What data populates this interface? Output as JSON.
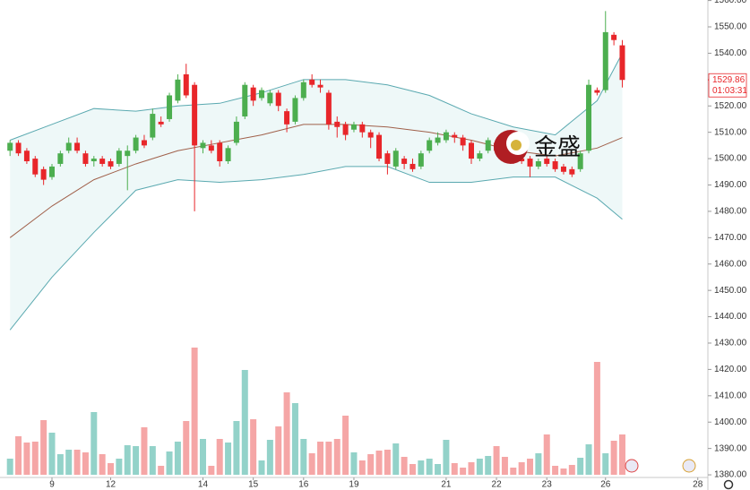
{
  "chart_data": {
    "type": "candlestick",
    "categories": [
      null,
      null,
      null,
      null,
      null,
      "9",
      null,
      null,
      null,
      null,
      null,
      null,
      "12",
      null,
      null,
      null,
      null,
      null,
      null,
      null,
      null,
      null,
      null,
      "14",
      null,
      null,
      null,
      null,
      null,
      "15",
      null,
      null,
      null,
      null,
      null,
      "16",
      null,
      null,
      null,
      null,
      null,
      "19",
      null,
      null,
      null,
      null,
      null,
      null,
      null,
      null,
      null,
      null,
      "21",
      null,
      null,
      null,
      null,
      null,
      "22",
      null,
      null,
      null,
      null,
      null,
      "23",
      null,
      null,
      null,
      null,
      null,
      null,
      "26",
      null,
      null,
      null,
      null,
      null,
      null,
      null,
      null,
      null,
      null,
      "28"
    ],
    "open": [
      1503,
      1506,
      1503,
      1500,
      1496,
      1493,
      1498,
      1503,
      1506,
      1502,
      1499,
      1500,
      1499,
      1498,
      1501,
      1503,
      1507,
      1508,
      1514,
      1515,
      1522,
      1532,
      1528,
      1504,
      1505,
      1506,
      1499,
      1506,
      1516,
      1527,
      1523,
      1521,
      1525,
      1518,
      1514,
      1523,
      1530,
      1528,
      1525,
      1514,
      1513,
      1511,
      1513,
      1510,
      1509,
      1502,
      1497,
      1500,
      1498,
      1497,
      1503,
      1506,
      1507,
      1509,
      1508,
      1506,
      1500,
      1503,
      1506,
      1505,
      1502,
      1500,
      1500,
      1497,
      1500,
      1499,
      1497,
      1496,
      1496,
      1503,
      1526,
      1526,
      1547,
      1543,
      null,
      null,
      null,
      null,
      null,
      null,
      null,
      null,
      null
    ],
    "high": [
      1507,
      1507,
      1504,
      1501,
      1497,
      1498,
      1503,
      1508,
      1508,
      1503,
      1501,
      1501,
      1500,
      1504,
      1505,
      1509,
      1509,
      1519,
      1516,
      1525,
      1532,
      1536,
      1529,
      1507,
      1507,
      1507,
      1505,
      1516,
      1529,
      1528,
      1527,
      1526,
      1526,
      1519,
      1524,
      1530,
      1532,
      1530,
      1526,
      1516,
      1514,
      1514,
      1514,
      1511,
      1510,
      1503,
      1504,
      1501,
      1500,
      1503,
      1508,
      1510,
      1511,
      1510,
      1509,
      1507,
      1503,
      1508,
      1507,
      1506,
      1503,
      1501,
      1501,
      1500,
      1501,
      1500,
      1498,
      1497,
      1503,
      1530,
      1527,
      1556,
      1548,
      1545,
      null,
      null,
      null,
      null,
      null,
      null,
      null,
      null,
      null
    ],
    "low": [
      1501,
      1501,
      1498,
      1493,
      1490,
      1492,
      1497,
      1502,
      1502,
      1497,
      1497,
      1497,
      1496,
      1497,
      1488,
      1502,
      1504,
      1507,
      1512,
      1514,
      1521,
      1523,
      1480,
      1502,
      1502,
      1497,
      1498,
      1505,
      1515,
      1520,
      1522,
      1520,
      1518,
      1510,
      1513,
      1522,
      1527,
      1525,
      1511,
      1508,
      1507,
      1510,
      1508,
      1504,
      1499,
      1494,
      1496,
      1496,
      1495,
      1496,
      1502,
      1505,
      1506,
      1506,
      1503,
      1498,
      1499,
      1502,
      1502,
      1500,
      1498,
      1498,
      1493,
      1496,
      1497,
      1495,
      1494,
      1493,
      1495,
      1502,
      1524,
      1525,
      1543,
      1527,
      null,
      null,
      null,
      null,
      null,
      null,
      null,
      null,
      null
    ],
    "close": [
      1506,
      1502,
      1499,
      1494,
      1492,
      1497,
      1502,
      1506,
      1503,
      1498,
      1500,
      1498,
      1497,
      1503,
      1503,
      1508,
      1505,
      1517,
      1513,
      1524,
      1530,
      1524,
      1505,
      1506,
      1503,
      1499,
      1504,
      1514,
      1528,
      1522,
      1526,
      1525,
      1520,
      1513,
      1523,
      1529,
      1528,
      1527,
      1513,
      1512,
      1509,
      1513,
      1510,
      1508,
      1500,
      1498,
      1503,
      1498,
      1496,
      1502,
      1507,
      1508,
      1510,
      1508,
      1505,
      1500,
      1502,
      1507,
      1503,
      1501,
      1499,
      1499,
      1497,
      1499,
      1498,
      1496,
      1495,
      1494,
      1502,
      1528,
      1525,
      1548,
      1545,
      1529.86,
      null,
      null,
      null,
      null,
      null,
      null,
      null,
      null,
      null
    ],
    "volume": [
      18,
      43,
      36,
      37,
      61,
      47,
      23,
      28,
      28,
      25,
      70,
      23,
      13,
      18,
      33,
      32,
      53,
      32,
      10,
      26,
      37,
      60,
      142,
      40,
      10,
      40,
      36,
      60,
      117,
      62,
      16,
      39,
      54,
      92,
      80,
      40,
      24,
      37,
      37,
      40,
      66,
      25,
      16,
      23,
      27,
      28,
      35,
      20,
      12,
      16,
      18,
      12,
      39,
      13,
      8,
      14,
      18,
      21,
      32,
      20,
      8,
      14,
      18,
      24,
      45,
      10,
      7,
      11,
      19,
      34,
      126,
      24,
      38,
      45,
      null,
      null,
      null,
      null,
      null,
      null,
      null,
      null,
      null
    ],
    "vlim": [
      0,
      150
    ],
    "up_color": "#4cae4f",
    "down_color": "#e8262a",
    "volume_up_color": "#93d2c9",
    "volume_down_color": "#f5a6a6",
    "bands": {
      "x": [
        0,
        5,
        10,
        15,
        20,
        25,
        30,
        35,
        40,
        45,
        50,
        55,
        60,
        65,
        70,
        73
      ],
      "upper": [
        1507,
        1513,
        1519,
        1518,
        1520,
        1521,
        1525,
        1530,
        1530,
        1528,
        1524,
        1517,
        1512,
        1509,
        1522,
        1540
      ],
      "middle": [
        1470,
        1482,
        1492,
        1498,
        1503,
        1506,
        1509,
        1513,
        1513,
        1512,
        1510,
        1507,
        1503,
        1501,
        1504,
        1508
      ],
      "lower": [
        1435,
        1455,
        1472,
        1488,
        1492,
        1491,
        1492,
        1494,
        1497,
        1497,
        1491,
        1491,
        1493,
        1493,
        1485,
        1477
      ],
      "band_color": "#5aa9b0",
      "middle_color": "#a0604a",
      "fill": "#eef8f8"
    },
    "ylim": [
      1379,
      1560.2
    ],
    "yticks": [
      {
        "value": 1380,
        "label": "1380.00"
      },
      {
        "value": 1390,
        "label": "1390.00"
      },
      {
        "value": 1400,
        "label": "1400.00"
      },
      {
        "value": 1410,
        "label": "1410.00"
      },
      {
        "value": 1420,
        "label": "1420.00"
      },
      {
        "value": 1430,
        "label": "1430.00"
      },
      {
        "value": 1440,
        "label": "1440.00"
      },
      {
        "value": 1450,
        "label": "1450.00"
      },
      {
        "value": 1460,
        "label": "1460.00"
      },
      {
        "value": 1470,
        "label": "1470.00"
      },
      {
        "value": 1480,
        "label": "1480.00"
      },
      {
        "value": 1490,
        "label": "1490.00"
      },
      {
        "value": 1500,
        "label": "1500.00"
      },
      {
        "value": 1510,
        "label": "1510.00"
      },
      {
        "value": 1520,
        "label": "1520.00"
      },
      {
        "value": 1530,
        "label": "1530.00"
      },
      {
        "value": 1540,
        "label": "1540.00"
      },
      {
        "value": 1550,
        "label": "1550.00"
      },
      {
        "value": 1560,
        "label": "1560.00"
      }
    ],
    "last_price": 1529.86,
    "countdown": "01:03:31",
    "watermark": "金盛"
  }
}
